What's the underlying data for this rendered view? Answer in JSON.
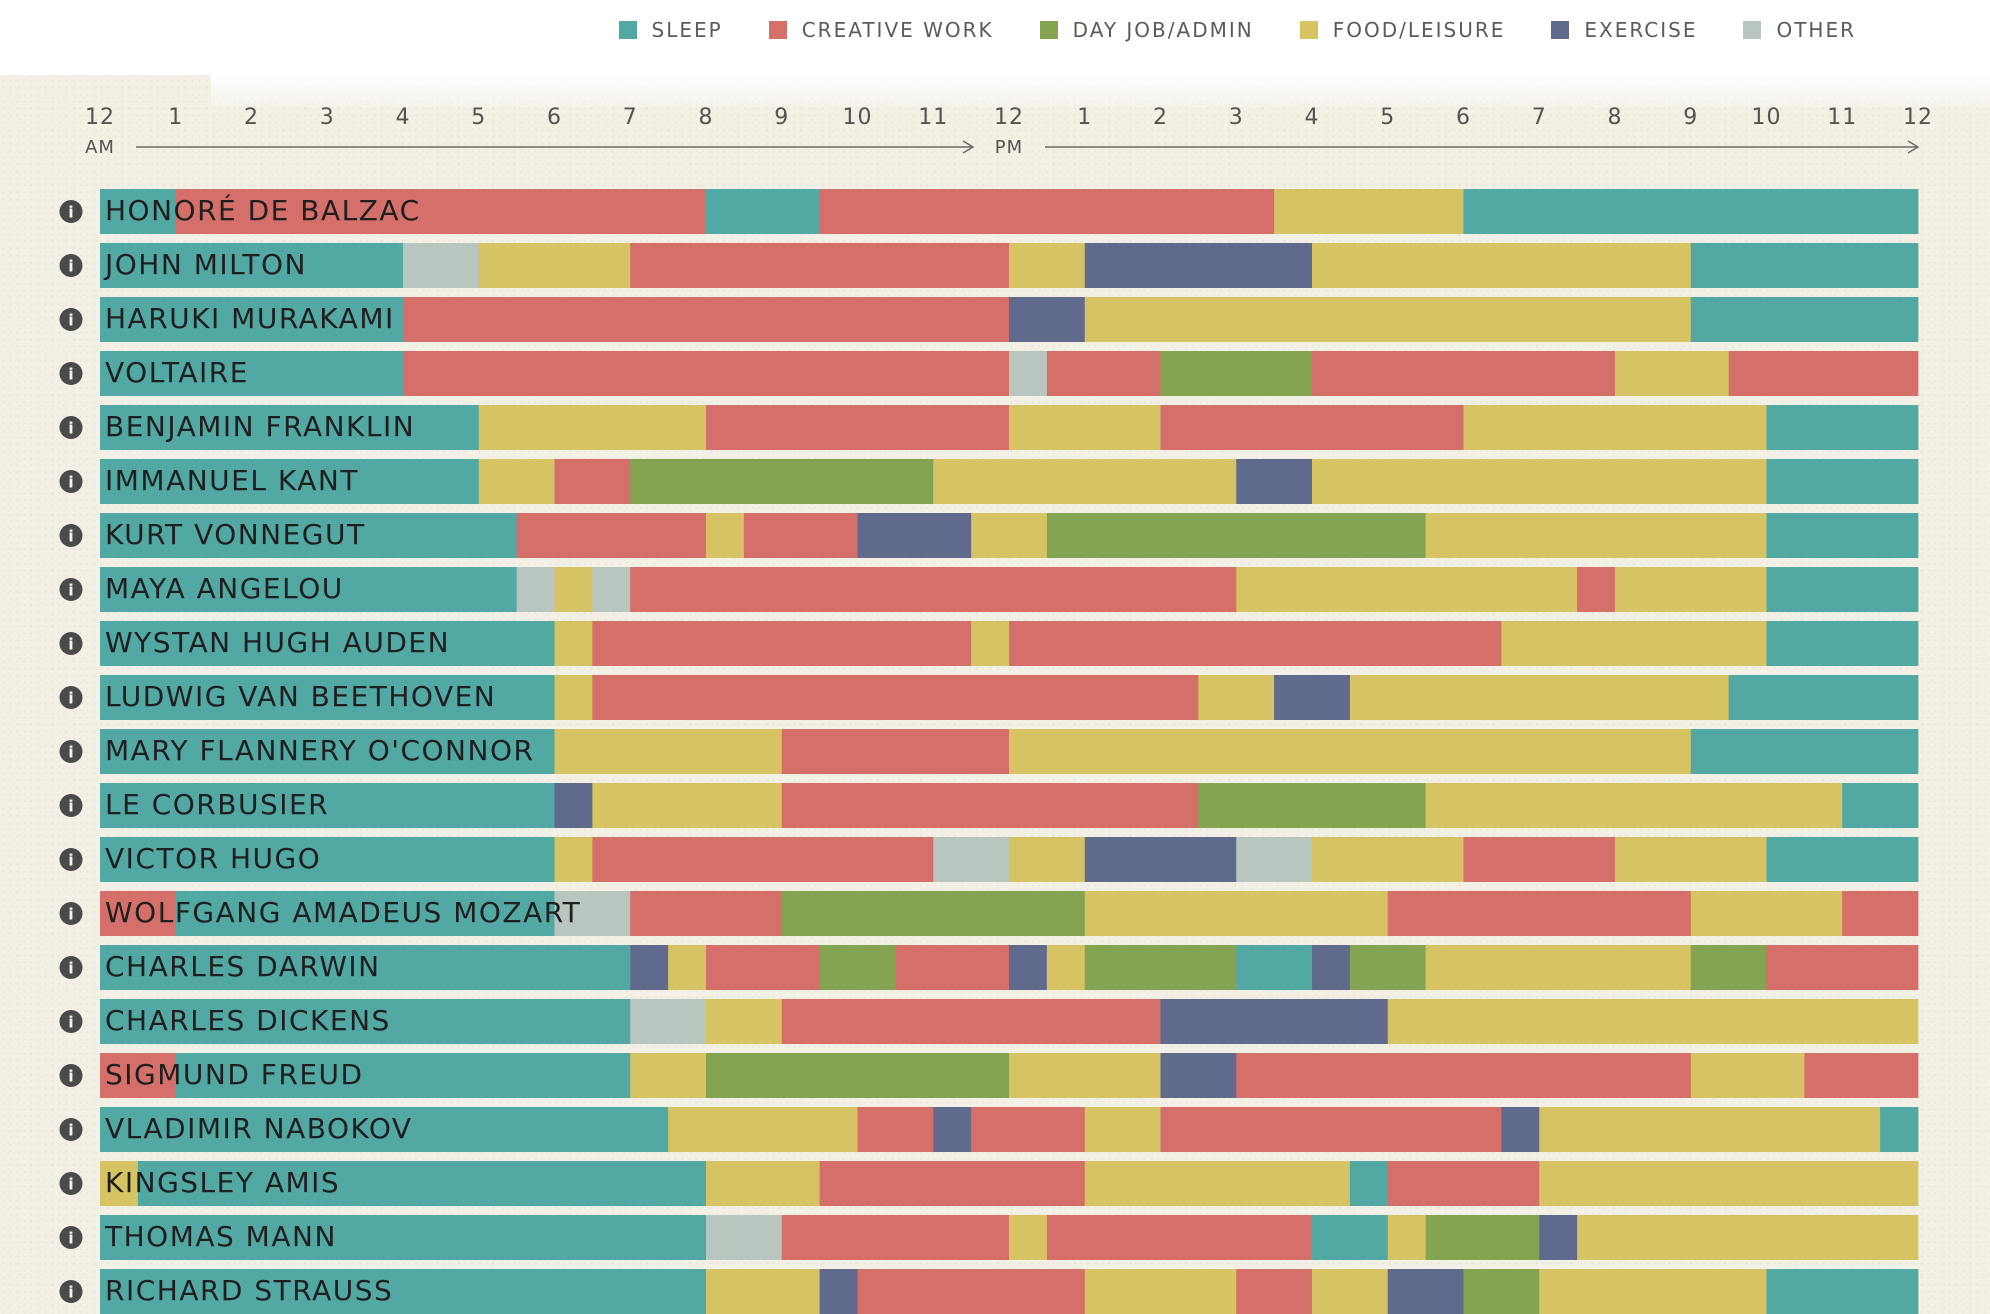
{
  "legend": [
    {
      "key": "sleep",
      "label": "SLEEP",
      "color": "#52a8a2"
    },
    {
      "key": "creative",
      "label": "CREATIVE WORK",
      "color": "#d56f69"
    },
    {
      "key": "dayjob",
      "label": "DAY JOB/ADMIN",
      "color": "#84a452"
    },
    {
      "key": "food",
      "label": "FOOD/LEISURE",
      "color": "#d6c363"
    },
    {
      "key": "exercise",
      "label": "EXERCISE",
      "color": "#5f6a8d"
    },
    {
      "key": "other",
      "label": "OTHER",
      "color": "#b8c6bf"
    }
  ],
  "chart_data": {
    "type": "bar",
    "orientation": "horizontal-stacked-timeline",
    "unit": "hours",
    "xlim": [
      0,
      24
    ],
    "x_tick_labels": [
      "12",
      "1",
      "2",
      "3",
      "4",
      "5",
      "6",
      "7",
      "8",
      "9",
      "10",
      "11",
      "12",
      "1",
      "2",
      "3",
      "4",
      "5",
      "6",
      "7",
      "8",
      "9",
      "10",
      "11",
      "12"
    ],
    "period_labels": [
      {
        "label": "AM",
        "at": 0
      },
      {
        "label": "PM",
        "at": 12
      }
    ],
    "legend_placement": "top-right",
    "info_icon_glyph": "i",
    "rows": [
      {
        "name": "HONORÉ DE BALZAC",
        "segments": [
          [
            "sleep",
            0,
            1
          ],
          [
            "creative",
            1,
            8
          ],
          [
            "sleep",
            8,
            9.5
          ],
          [
            "creative",
            9.5,
            15.5
          ],
          [
            "food",
            15.5,
            18
          ],
          [
            "sleep",
            18,
            24
          ]
        ]
      },
      {
        "name": "JOHN MILTON",
        "segments": [
          [
            "sleep",
            0,
            4
          ],
          [
            "other",
            4,
            5
          ],
          [
            "food",
            5,
            7
          ],
          [
            "creative",
            7,
            12
          ],
          [
            "food",
            12,
            13
          ],
          [
            "exercise",
            13,
            16
          ],
          [
            "food",
            16,
            21
          ],
          [
            "sleep",
            21,
            24
          ]
        ]
      },
      {
        "name": "HARUKI MURAKAMI",
        "segments": [
          [
            "sleep",
            0,
            4
          ],
          [
            "creative",
            4,
            12
          ],
          [
            "exercise",
            12,
            13
          ],
          [
            "food",
            13,
            21
          ],
          [
            "sleep",
            21,
            24
          ]
        ]
      },
      {
        "name": "VOLTAIRE",
        "segments": [
          [
            "sleep",
            0,
            4
          ],
          [
            "creative",
            4,
            12
          ],
          [
            "other",
            12,
            12.5
          ],
          [
            "creative",
            12.5,
            14
          ],
          [
            "dayjob",
            14,
            16
          ],
          [
            "creative",
            16,
            20
          ],
          [
            "food",
            20,
            21.5
          ],
          [
            "creative",
            21.5,
            24
          ]
        ]
      },
      {
        "name": "BENJAMIN FRANKLIN",
        "segments": [
          [
            "sleep",
            0,
            5
          ],
          [
            "food",
            5,
            8
          ],
          [
            "creative",
            8,
            12
          ],
          [
            "food",
            12,
            14
          ],
          [
            "creative",
            14,
            18
          ],
          [
            "food",
            18,
            22
          ],
          [
            "sleep",
            22,
            24
          ]
        ]
      },
      {
        "name": "IMMANUEL KANT",
        "segments": [
          [
            "sleep",
            0,
            5
          ],
          [
            "food",
            5,
            6
          ],
          [
            "creative",
            6,
            7
          ],
          [
            "dayjob",
            7,
            11
          ],
          [
            "food",
            11,
            15
          ],
          [
            "exercise",
            15,
            16
          ],
          [
            "food",
            16,
            22
          ],
          [
            "sleep",
            22,
            24
          ]
        ]
      },
      {
        "name": "KURT VONNEGUT",
        "segments": [
          [
            "sleep",
            0,
            5.5
          ],
          [
            "creative",
            5.5,
            8
          ],
          [
            "food",
            8,
            8.5
          ],
          [
            "creative",
            8.5,
            10
          ],
          [
            "exercise",
            10,
            11.5
          ],
          [
            "food",
            11.5,
            12.5
          ],
          [
            "dayjob",
            12.5,
            17.5
          ],
          [
            "food",
            17.5,
            22
          ],
          [
            "sleep",
            22,
            24
          ]
        ]
      },
      {
        "name": "MAYA ANGELOU",
        "segments": [
          [
            "sleep",
            0,
            5.5
          ],
          [
            "other",
            5.5,
            6
          ],
          [
            "food",
            6,
            6.5
          ],
          [
            "other",
            6.5,
            7
          ],
          [
            "creative",
            7,
            15
          ],
          [
            "food",
            15,
            19.5
          ],
          [
            "creative",
            19.5,
            20
          ],
          [
            "food",
            20,
            22
          ],
          [
            "sleep",
            22,
            24
          ]
        ]
      },
      {
        "name": "WYSTAN HUGH AUDEN",
        "segments": [
          [
            "sleep",
            0,
            6
          ],
          [
            "food",
            6,
            6.5
          ],
          [
            "creative",
            6.5,
            11.5
          ],
          [
            "food",
            11.5,
            12
          ],
          [
            "creative",
            12,
            18.5
          ],
          [
            "food",
            18.5,
            22
          ],
          [
            "sleep",
            22,
            24
          ]
        ]
      },
      {
        "name": "LUDWIG VAN BEETHOVEN",
        "segments": [
          [
            "sleep",
            0,
            6
          ],
          [
            "food",
            6,
            6.5
          ],
          [
            "creative",
            6.5,
            14.5
          ],
          [
            "food",
            14.5,
            15.5
          ],
          [
            "exercise",
            15.5,
            16.5
          ],
          [
            "food",
            16.5,
            21.5
          ],
          [
            "sleep",
            21.5,
            24
          ]
        ]
      },
      {
        "name": "MARY FLANNERY O'CONNOR",
        "segments": [
          [
            "sleep",
            0,
            6
          ],
          [
            "food",
            6,
            9
          ],
          [
            "creative",
            9,
            12
          ],
          [
            "food",
            12,
            21
          ],
          [
            "sleep",
            21,
            24
          ]
        ]
      },
      {
        "name": "LE CORBUSIER",
        "segments": [
          [
            "sleep",
            0,
            6
          ],
          [
            "exercise",
            6,
            6.5
          ],
          [
            "food",
            6.5,
            9
          ],
          [
            "creative",
            9,
            14.5
          ],
          [
            "dayjob",
            14.5,
            17.5
          ],
          [
            "food",
            17.5,
            23
          ],
          [
            "sleep",
            23,
            24
          ]
        ]
      },
      {
        "name": "VICTOR HUGO",
        "segments": [
          [
            "sleep",
            0,
            6
          ],
          [
            "food",
            6,
            6.5
          ],
          [
            "creative",
            6.5,
            11
          ],
          [
            "other",
            11,
            12
          ],
          [
            "food",
            12,
            13
          ],
          [
            "exercise",
            13,
            15
          ],
          [
            "other",
            15,
            16
          ],
          [
            "food",
            16,
            18
          ],
          [
            "creative",
            18,
            20
          ],
          [
            "food",
            20,
            22
          ],
          [
            "sleep",
            22,
            24
          ]
        ]
      },
      {
        "name": "WOLFGANG AMADEUS MOZART",
        "segments": [
          [
            "creative",
            0,
            1
          ],
          [
            "sleep",
            1,
            6
          ],
          [
            "other",
            6,
            7
          ],
          [
            "creative",
            7,
            9
          ],
          [
            "dayjob",
            9,
            13
          ],
          [
            "food",
            13,
            17
          ],
          [
            "creative",
            17,
            21
          ],
          [
            "food",
            21,
            23
          ],
          [
            "creative",
            23,
            24
          ]
        ]
      },
      {
        "name": "CHARLES DARWIN",
        "segments": [
          [
            "sleep",
            0,
            7
          ],
          [
            "exercise",
            7,
            7.5
          ],
          [
            "food",
            7.5,
            8
          ],
          [
            "creative",
            8,
            9.5
          ],
          [
            "dayjob",
            9.5,
            10.5
          ],
          [
            "creative",
            10.5,
            12
          ],
          [
            "exercise",
            12,
            12.5
          ],
          [
            "food",
            12.5,
            13
          ],
          [
            "dayjob",
            13,
            15
          ],
          [
            "sleep",
            15,
            16
          ],
          [
            "exercise",
            16,
            16.5
          ],
          [
            "dayjob",
            16.5,
            17.5
          ],
          [
            "food",
            17.5,
            21
          ],
          [
            "dayjob",
            21,
            22
          ],
          [
            "creative",
            22,
            24
          ]
        ]
      },
      {
        "name": "CHARLES DICKENS",
        "segments": [
          [
            "sleep",
            0,
            7
          ],
          [
            "other",
            7,
            8
          ],
          [
            "food",
            8,
            9
          ],
          [
            "creative",
            9,
            14
          ],
          [
            "exercise",
            14,
            17
          ],
          [
            "food",
            17,
            24
          ]
        ]
      },
      {
        "name": "SIGMUND FREUD",
        "segments": [
          [
            "creative",
            0,
            1
          ],
          [
            "sleep",
            1,
            7
          ],
          [
            "food",
            7,
            8
          ],
          [
            "dayjob",
            8,
            12
          ],
          [
            "food",
            12,
            14
          ],
          [
            "exercise",
            14,
            15
          ],
          [
            "creative",
            15,
            21
          ],
          [
            "food",
            21,
            22.5
          ],
          [
            "creative",
            22.5,
            24
          ]
        ]
      },
      {
        "name": "VLADIMIR NABOKOV",
        "segments": [
          [
            "sleep",
            0,
            7.5
          ],
          [
            "food",
            7.5,
            10
          ],
          [
            "creative",
            10,
            11
          ],
          [
            "exercise",
            11,
            11.5
          ],
          [
            "creative",
            11.5,
            13
          ],
          [
            "food",
            13,
            14
          ],
          [
            "creative",
            14,
            18.5
          ],
          [
            "exercise",
            18.5,
            19
          ],
          [
            "food",
            19,
            23.5
          ],
          [
            "sleep",
            23.5,
            24
          ]
        ]
      },
      {
        "name": "KINGSLEY AMIS",
        "segments": [
          [
            "food",
            0,
            0.5
          ],
          [
            "sleep",
            0.5,
            8
          ],
          [
            "food",
            8,
            9.5
          ],
          [
            "creative",
            9.5,
            13
          ],
          [
            "food",
            13,
            16.5
          ],
          [
            "sleep",
            16.5,
            17
          ],
          [
            "creative",
            17,
            19
          ],
          [
            "food",
            19,
            24
          ]
        ]
      },
      {
        "name": "THOMAS MANN",
        "segments": [
          [
            "sleep",
            0,
            8
          ],
          [
            "other",
            8,
            9
          ],
          [
            "creative",
            9,
            12
          ],
          [
            "food",
            12,
            12.5
          ],
          [
            "creative",
            12.5,
            16
          ],
          [
            "sleep",
            16,
            17
          ],
          [
            "food",
            17,
            17.5
          ],
          [
            "dayjob",
            17.5,
            19
          ],
          [
            "exercise",
            19,
            19.5
          ],
          [
            "food",
            19.5,
            24
          ]
        ]
      },
      {
        "name": "RICHARD STRAUSS",
        "segments": [
          [
            "sleep",
            0,
            8
          ],
          [
            "food",
            8,
            9.5
          ],
          [
            "exercise",
            9.5,
            10
          ],
          [
            "creative",
            10,
            13
          ],
          [
            "food",
            13,
            15
          ],
          [
            "creative",
            15,
            16
          ],
          [
            "food",
            16,
            17
          ],
          [
            "exercise",
            17,
            18
          ],
          [
            "dayjob",
            18,
            19
          ],
          [
            "food",
            19,
            22
          ],
          [
            "sleep",
            22,
            24
          ]
        ]
      }
    ]
  }
}
